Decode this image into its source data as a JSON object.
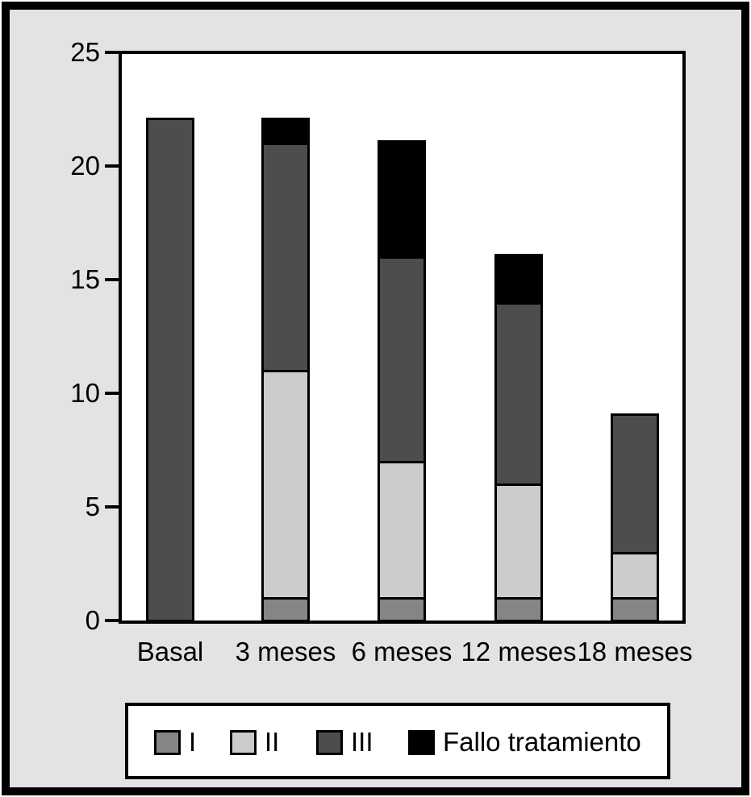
{
  "figure": {
    "background_color": "#e3e3e3",
    "plot_background_color": "#ffffff",
    "frame_color": "#000000"
  },
  "chart_data": {
    "type": "bar",
    "stacked": true,
    "title": "",
    "xlabel": "",
    "ylabel": "",
    "categories": [
      "Basal",
      "3 meses",
      "6 meses",
      "12 meses",
      "18 meses"
    ],
    "series": [
      {
        "name": "I",
        "color": "#858585",
        "values": [
          0,
          1,
          1,
          1,
          1
        ]
      },
      {
        "name": "II",
        "color": "#cccccc",
        "values": [
          0,
          10,
          6,
          5,
          2
        ]
      },
      {
        "name": "III",
        "color": "#4d4d4d",
        "values": [
          22,
          10,
          9,
          8,
          6
        ]
      },
      {
        "name": "Fallo tratamiento",
        "color": "#000000",
        "values": [
          0,
          1,
          5,
          2,
          0
        ]
      }
    ],
    "totals": [
      22,
      22,
      21,
      16,
      9
    ],
    "ylim": [
      0,
      25
    ],
    "yticks": [
      0,
      5,
      10,
      15,
      20,
      25
    ],
    "grid": false,
    "legend_position": "bottom"
  }
}
